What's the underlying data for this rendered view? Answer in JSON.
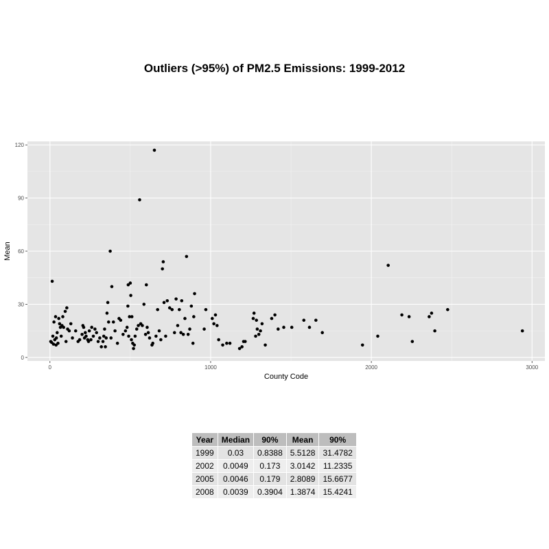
{
  "chart_data": {
    "type": "scatter",
    "title": "Outliers (>95%) of PM2.5 Emissions: 1999-2012",
    "xlabel": "County Code",
    "ylabel": "Mean",
    "xlim": [
      -140,
      3080
    ],
    "ylim": [
      -2,
      122
    ],
    "xticks": [
      0,
      1000,
      2000,
      3000
    ],
    "yticks": [
      0,
      30,
      60,
      90,
      120
    ],
    "grid": true,
    "point_color": "#000000",
    "panel_color": "#e5e5e5",
    "points": [
      [
        5,
        9
      ],
      [
        10,
        8.5
      ],
      [
        14,
        43
      ],
      [
        18,
        12
      ],
      [
        22,
        7.5
      ],
      [
        25,
        20
      ],
      [
        30,
        10
      ],
      [
        35,
        23
      ],
      [
        38,
        7
      ],
      [
        40,
        11
      ],
      [
        45,
        14
      ],
      [
        50,
        8
      ],
      [
        55,
        22
      ],
      [
        60,
        19
      ],
      [
        65,
        17
      ],
      [
        70,
        12
      ],
      [
        75,
        18
      ],
      [
        80,
        23
      ],
      [
        85,
        17
      ],
      [
        95,
        26
      ],
      [
        100,
        9
      ],
      [
        105,
        28
      ],
      [
        110,
        16
      ],
      [
        120,
        15
      ],
      [
        130,
        19
      ],
      [
        140,
        11
      ],
      [
        160,
        15
      ],
      [
        175,
        9
      ],
      [
        185,
        10
      ],
      [
        200,
        13
      ],
      [
        205,
        18
      ],
      [
        210,
        17
      ],
      [
        215,
        11
      ],
      [
        220,
        14
      ],
      [
        225,
        12
      ],
      [
        235,
        10
      ],
      [
        240,
        9
      ],
      [
        245,
        15
      ],
      [
        255,
        10
      ],
      [
        260,
        17
      ],
      [
        270,
        12
      ],
      [
        280,
        16
      ],
      [
        290,
        14
      ],
      [
        300,
        9
      ],
      [
        310,
        11
      ],
      [
        320,
        6
      ],
      [
        330,
        9
      ],
      [
        335,
        12
      ],
      [
        340,
        16
      ],
      [
        345,
        6
      ],
      [
        350,
        11
      ],
      [
        355,
        25
      ],
      [
        360,
        31
      ],
      [
        365,
        20
      ],
      [
        375,
        60
      ],
      [
        380,
        11
      ],
      [
        385,
        40
      ],
      [
        395,
        20
      ],
      [
        405,
        15
      ],
      [
        420,
        8
      ],
      [
        430,
        22
      ],
      [
        440,
        21
      ],
      [
        455,
        13
      ],
      [
        470,
        15
      ],
      [
        480,
        17
      ],
      [
        485,
        29
      ],
      [
        487,
        41
      ],
      [
        490,
        12
      ],
      [
        495,
        23
      ],
      [
        500,
        42
      ],
      [
        503,
        35
      ],
      [
        507,
        10
      ],
      [
        510,
        23
      ],
      [
        515,
        8
      ],
      [
        520,
        5
      ],
      [
        525,
        7
      ],
      [
        530,
        12
      ],
      [
        540,
        16
      ],
      [
        550,
        18
      ],
      [
        558,
        89
      ],
      [
        565,
        19
      ],
      [
        575,
        18
      ],
      [
        585,
        30
      ],
      [
        595,
        13
      ],
      [
        600,
        41
      ],
      [
        605,
        17
      ],
      [
        612,
        14
      ],
      [
        620,
        11
      ],
      [
        635,
        7
      ],
      [
        640,
        8
      ],
      [
        650,
        117
      ],
      [
        660,
        12
      ],
      [
        670,
        27
      ],
      [
        680,
        15
      ],
      [
        690,
        10
      ],
      [
        700,
        50
      ],
      [
        705,
        54
      ],
      [
        710,
        31
      ],
      [
        720,
        12
      ],
      [
        730,
        32
      ],
      [
        745,
        28
      ],
      [
        760,
        27
      ],
      [
        775,
        14
      ],
      [
        785,
        33
      ],
      [
        795,
        18
      ],
      [
        805,
        27
      ],
      [
        815,
        14
      ],
      [
        820,
        32
      ],
      [
        830,
        13
      ],
      [
        840,
        22
      ],
      [
        850,
        57
      ],
      [
        860,
        13
      ],
      [
        870,
        16
      ],
      [
        880,
        29
      ],
      [
        890,
        8
      ],
      [
        895,
        23
      ],
      [
        900,
        36
      ],
      [
        960,
        16
      ],
      [
        970,
        27
      ],
      [
        1010,
        22
      ],
      [
        1020,
        19
      ],
      [
        1030,
        24
      ],
      [
        1040,
        18
      ],
      [
        1050,
        10
      ],
      [
        1075,
        7
      ],
      [
        1100,
        8
      ],
      [
        1120,
        8
      ],
      [
        1180,
        5
      ],
      [
        1195,
        6
      ],
      [
        1205,
        9
      ],
      [
        1215,
        9
      ],
      [
        1265,
        22
      ],
      [
        1270,
        25
      ],
      [
        1280,
        12
      ],
      [
        1285,
        21
      ],
      [
        1290,
        16
      ],
      [
        1300,
        13
      ],
      [
        1310,
        15
      ],
      [
        1320,
        19
      ],
      [
        1340,
        7
      ],
      [
        1380,
        22
      ],
      [
        1400,
        24
      ],
      [
        1420,
        16
      ],
      [
        1455,
        17
      ],
      [
        1505,
        17
      ],
      [
        1580,
        21
      ],
      [
        1615,
        17
      ],
      [
        1655,
        21
      ],
      [
        1695,
        14
      ],
      [
        1945,
        7
      ],
      [
        2040,
        12
      ],
      [
        2105,
        52
      ],
      [
        2190,
        24
      ],
      [
        2235,
        23
      ],
      [
        2255,
        9
      ],
      [
        2360,
        23
      ],
      [
        2375,
        25
      ],
      [
        2395,
        15
      ],
      [
        2475,
        27
      ],
      [
        2940,
        15
      ]
    ]
  },
  "table": {
    "headers": [
      "Year",
      "Median",
      "90%",
      "Mean",
      "90%"
    ],
    "rows": [
      [
        "1999",
        "0.03",
        "0.8388",
        "5.5128",
        "31.4782"
      ],
      [
        "2002",
        "0.0049",
        "0.173",
        "3.0142",
        "11.2335"
      ],
      [
        "2005",
        "0.0046",
        "0.179",
        "2.8089",
        "15.6677"
      ],
      [
        "2008",
        "0.0039",
        "0.3904",
        "1.3874",
        "15.4241"
      ]
    ]
  }
}
